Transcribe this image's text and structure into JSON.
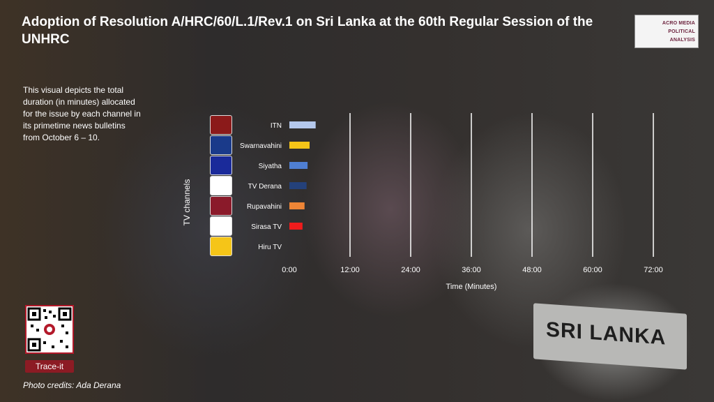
{
  "title": "Adoption of Resolution A/HRC/60/L.1/Rev.1 on Sri Lanka at the 60th Regular Session of the UNHRC",
  "description": "This visual depicts the total duration (in minutes) allocated for the issue by each channel in its primetime news bulletins  from  October 6 – 10.",
  "logo": {
    "line1": "ACRO MEDIA",
    "line2": "POLITICAL",
    "line3": "ANALYSIS"
  },
  "trace_label": "Trace-it",
  "photo_credits": "Photo credits: Ada Derana",
  "plaque_text": "SRI LANKA",
  "chart_data": {
    "type": "bar",
    "orientation": "horizontal",
    "xlabel": "Time (Minutes)",
    "ylabel": "TV channels",
    "xlim": [
      0,
      72
    ],
    "xticks": [
      "0:00",
      "12:00",
      "24:00",
      "36:00",
      "48:00",
      "60:00",
      "72:00"
    ],
    "grid": true,
    "categories": [
      "ITN",
      "Swarnavahini",
      "Siyatha",
      "TV Derana",
      "Rupavahini",
      "Sirasa TV",
      "Hiru TV"
    ],
    "values": [
      5.2,
      4.0,
      3.6,
      3.4,
      3.0,
      2.6,
      0
    ],
    "colors": [
      "#b4c8ec",
      "#f5c518",
      "#4f7fd2",
      "#24417a",
      "#ee8536",
      "#ee1c1c",
      "#999999"
    ],
    "logo_colors": [
      "#8b1a1a",
      "#1a3a8a",
      "#1a2a9a",
      "#ffffff",
      "#8a1a2a",
      "#ffffff",
      "#f5c518"
    ]
  }
}
